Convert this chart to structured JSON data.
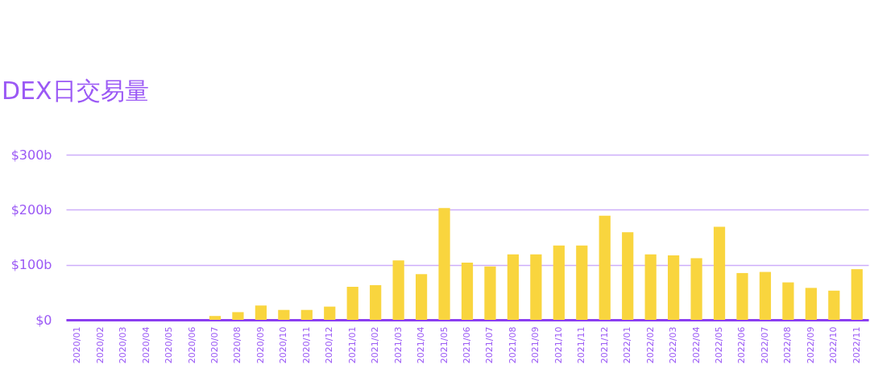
{
  "chart_data": {
    "type": "bar",
    "title": "DEX日交易量",
    "categories": [
      "2020/01",
      "2020/02",
      "2020/03",
      "2020/04",
      "2020/05",
      "2020/06",
      "2020/07",
      "2020/08",
      "2020/09",
      "2020/10",
      "2020/11",
      "2020/12",
      "2021/01",
      "2021/02",
      "2021/03",
      "2021/04",
      "2021/05",
      "2021/06",
      "2021/07",
      "2021/08",
      "2021/09",
      "2021/10",
      "2021/11",
      "2021/12",
      "2022/01",
      "2022/02",
      "2022/03",
      "2022/04",
      "2022/05",
      "2022/06",
      "2022/07",
      "2022/08",
      "2022/09",
      "2022/10",
      "2022/11"
    ],
    "values": [
      0,
      0,
      0,
      0,
      0,
      0,
      7,
      14,
      26,
      18,
      18,
      24,
      60,
      63,
      108,
      83,
      203,
      104,
      97,
      119,
      119,
      135,
      135,
      189,
      159,
      119,
      117,
      112,
      169,
      85,
      87,
      68,
      58,
      53,
      92
    ],
    "color": "#f9d53e",
    "ylim": [
      0,
      300
    ],
    "yticks": [
      {
        "value": 0,
        "label": "$0"
      },
      {
        "value": 100,
        "label": "$100b"
      },
      {
        "value": 200,
        "label": "$200b"
      },
      {
        "value": 300,
        "label": "$300b"
      }
    ],
    "grid": "y"
  }
}
